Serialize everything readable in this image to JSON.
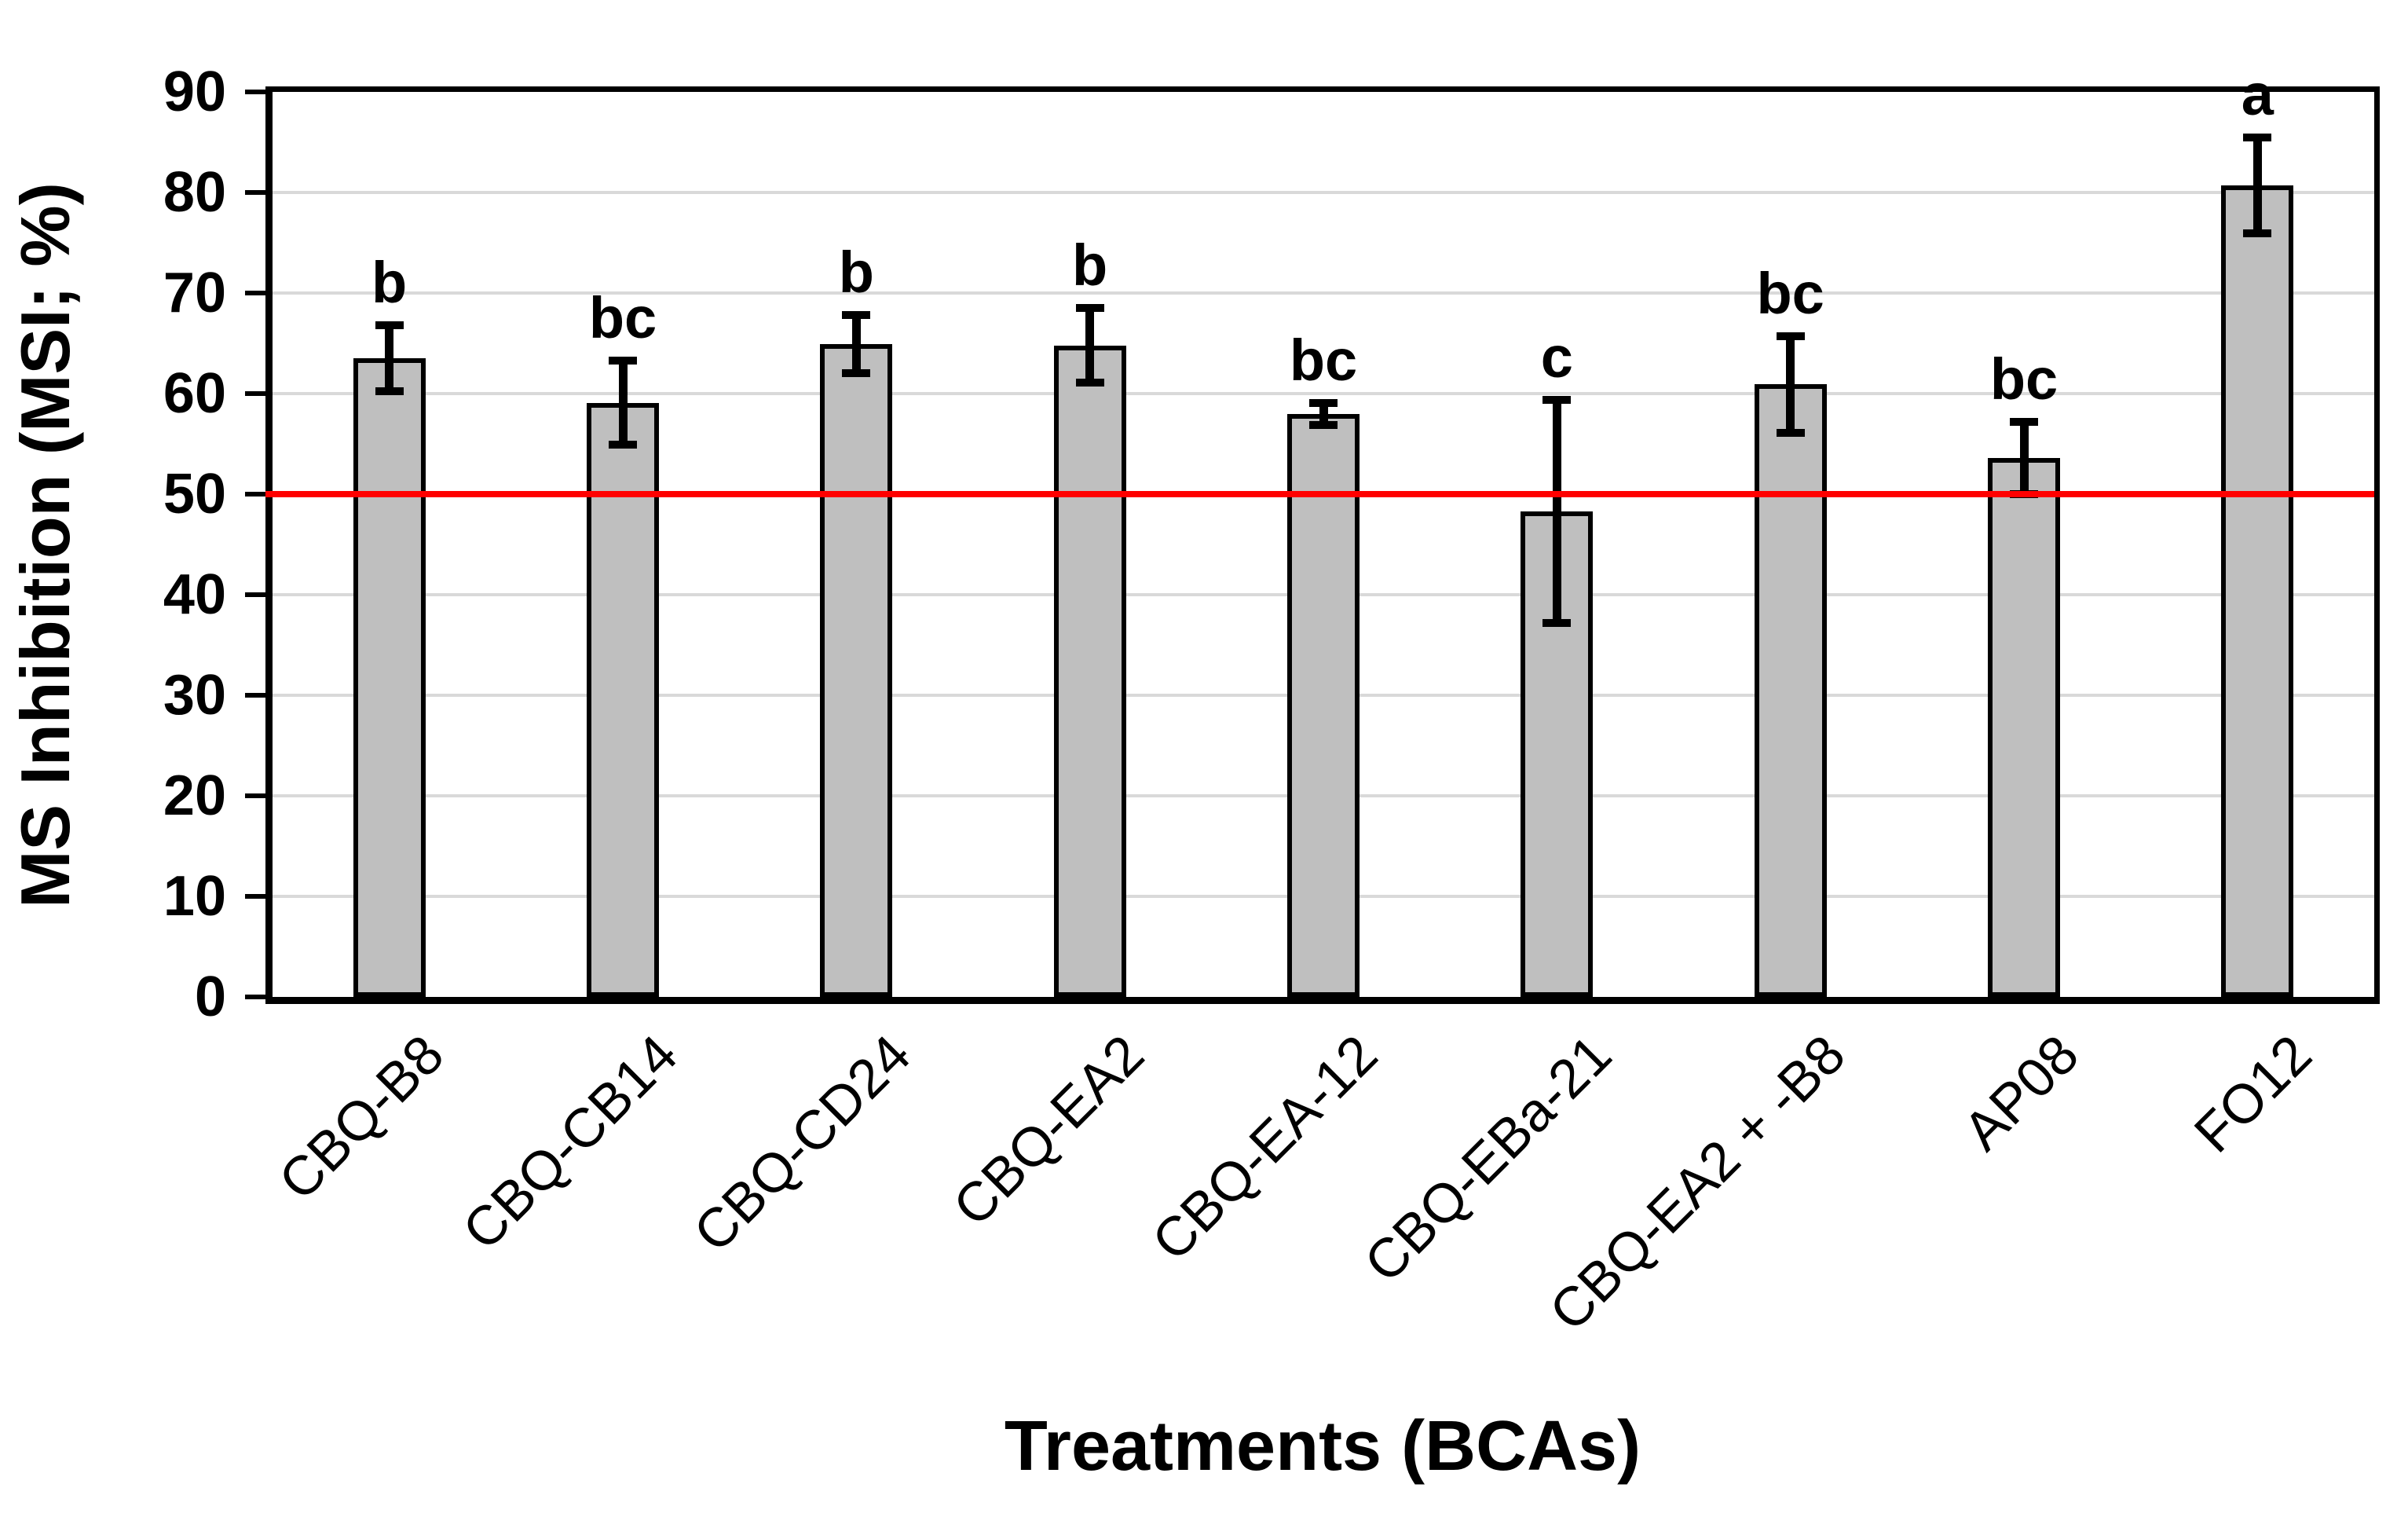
{
  "figure": {
    "background": "#FFFFFF"
  },
  "chart_data": {
    "type": "bar",
    "title": "",
    "xlabel": "Treatments (BCAs)",
    "ylabel": "MS Inhibition (MSI; %)",
    "ylim": [
      0,
      90
    ],
    "yticks": [
      0,
      10,
      20,
      30,
      40,
      50,
      60,
      70,
      80,
      90
    ],
    "grid": true,
    "legend": "none",
    "categories": [
      "CBQ-B8",
      "CBQ-CB14",
      "CBQ-CD24",
      "CBQ-EA2",
      "CBQ-EA-12",
      "CBQ-EBa-21",
      "CBQ-EA2 + -B8",
      "AP08",
      "FO12"
    ],
    "values": [
      63.5,
      59.1,
      64.9,
      64.8,
      58.0,
      48.3,
      60.9,
      53.6,
      80.7
    ],
    "error_bars": [
      3.3,
      4.2,
      2.9,
      3.7,
      1.1,
      11.1,
      4.8,
      3.6,
      4.8
    ],
    "sig_letters": [
      "b",
      "bc",
      "b",
      "b",
      "bc",
      "c",
      "bc",
      "bc",
      "a"
    ],
    "reference_line": {
      "value": 50,
      "color": "#FF0000"
    },
    "colors": {
      "bar_fill": "#BFBFBF",
      "bar_border": "#000000",
      "gridline": "#D9D9D9",
      "axis": "#000000",
      "text": "#000000"
    }
  }
}
